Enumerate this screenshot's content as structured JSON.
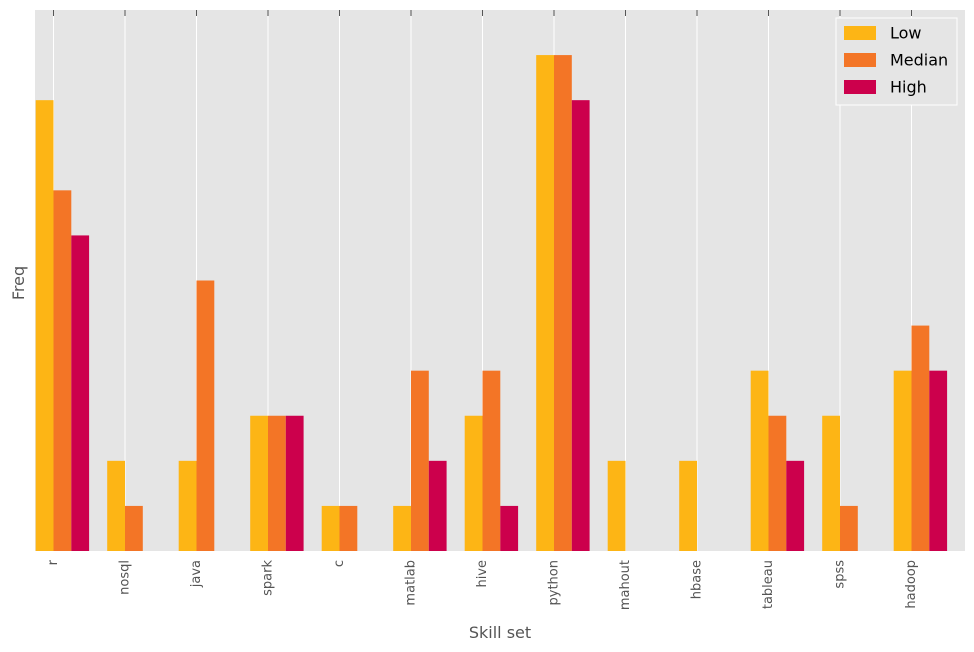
{
  "chart_data": {
    "type": "bar",
    "title": "",
    "xlabel": "Skill set",
    "ylabel": "Freq",
    "categories": [
      "r",
      "nosql",
      "java",
      "spark",
      "c",
      "matlab",
      "hive",
      "python",
      "mahout",
      "hbase",
      "tableau",
      "spss",
      "hadoop"
    ],
    "series": [
      {
        "name": "Low",
        "color": "#FDB515",
        "values": [
          10,
          2,
          2,
          3,
          1,
          1,
          3,
          11,
          2,
          2,
          4,
          3,
          4
        ]
      },
      {
        "name": "Median",
        "color": "#F37526",
        "values": [
          8,
          1,
          6,
          3,
          1,
          4,
          4,
          11,
          0,
          0,
          3,
          1,
          5
        ]
      },
      {
        "name": "High",
        "color": "#CC004C",
        "values": [
          7,
          0,
          0,
          3,
          0,
          2,
          1,
          10,
          0,
          0,
          2,
          0,
          4
        ]
      }
    ],
    "ylim": [
      0,
      12
    ],
    "grid": true,
    "ytick_labels_shown": false,
    "legend_position": "top-right"
  }
}
